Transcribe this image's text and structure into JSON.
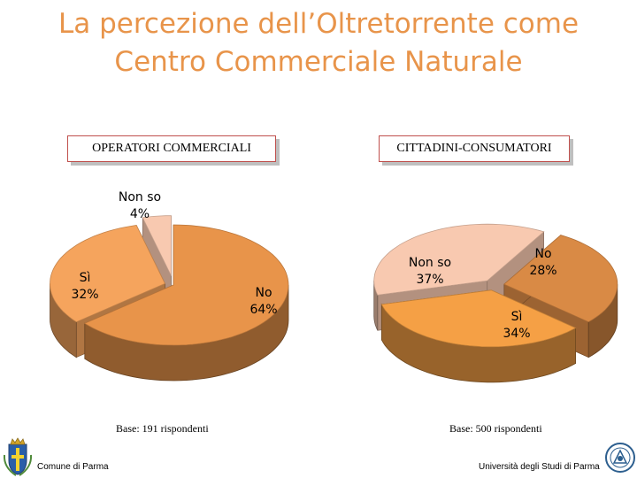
{
  "title": {
    "line1": "La percezione dell’Oltretorrente come",
    "line2": "Centro Commerciale Naturale"
  },
  "chart_data": [
    {
      "type": "pie",
      "title": "OPERATORI COMMERCIALI",
      "categories": [
        "No",
        "Sì",
        "Non so"
      ],
      "values": [
        64,
        32,
        4
      ],
      "labels": [
        "No\n64%",
        "Sì\n32%",
        "Non so\n4%"
      ],
      "colors": [
        "#e8944a",
        "#f5a45d",
        "#f8c9b0"
      ],
      "base": "Base: 191 rispondenti"
    },
    {
      "type": "pie",
      "title": "CITTADINI-CONSUMATORI",
      "categories": [
        "No",
        "Sì",
        "Non so"
      ],
      "values": [
        28,
        34,
        37
      ],
      "labels": [
        "No\n28%",
        "Sì\n34%",
        "Non so\n37%"
      ],
      "colors": [
        "#d98a45",
        "#f5a045",
        "#f8c9b0"
      ],
      "base": "Base: 500 rispondenti"
    }
  ],
  "footer": {
    "left": "Comune di Parma",
    "right": "Università degli Studi di Parma"
  }
}
